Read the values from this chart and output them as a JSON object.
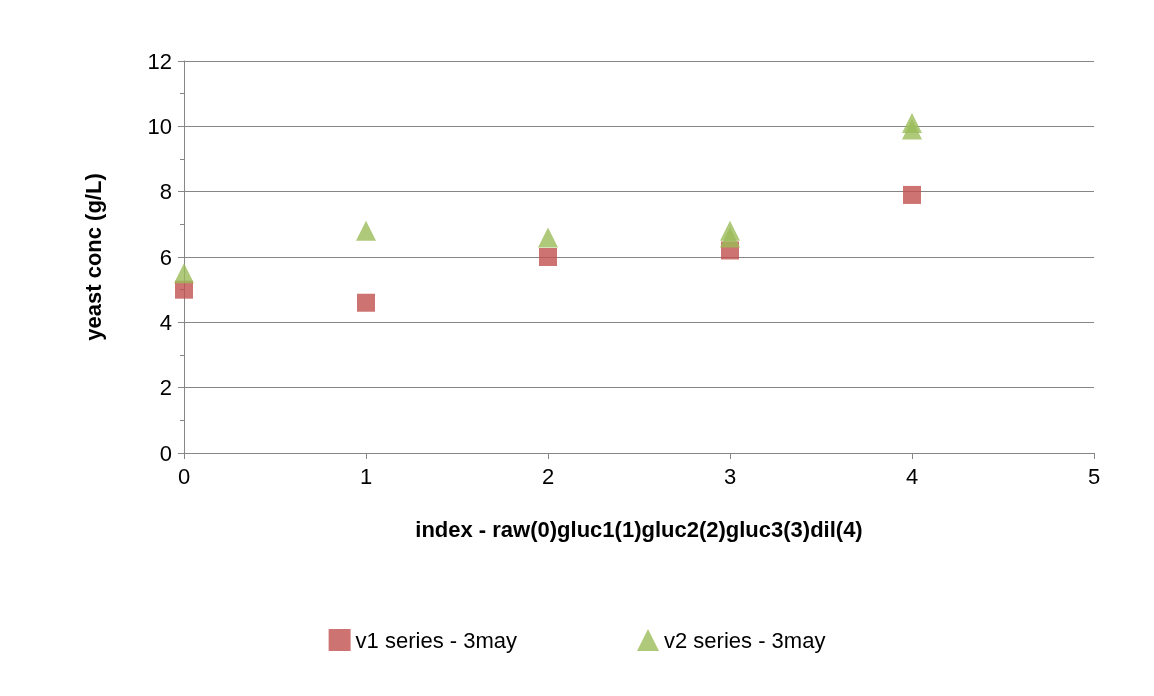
{
  "chart_data": {
    "type": "scatter",
    "xlabel": "index - raw(0)gluc1(1)gluc2(2)gluc3(3)dil(4)",
    "ylabel": "yeast conc (g/L)",
    "xlim": [
      0,
      5
    ],
    "xticks": [
      0,
      1,
      2,
      3,
      4,
      5
    ],
    "ylim": [
      0,
      12
    ],
    "yticks": [
      0,
      2,
      4,
      6,
      8,
      10,
      12
    ],
    "grid": "y",
    "legend": "bottom",
    "series": [
      {
        "name": "v1 series - 3may",
        "color": "#c0504d",
        "marker": "square",
        "x": [
          0,
          1,
          2,
          3,
          4
        ],
        "values": [
          5.0,
          4.6,
          6.0,
          6.2,
          7.9
        ]
      },
      {
        "name": "v2 series - 3may",
        "color": "#9bbb59",
        "marker": "triangle",
        "x": [
          0,
          1,
          2,
          3,
          3,
          4,
          4
        ],
        "values": [
          5.5,
          6.8,
          6.6,
          6.6,
          6.8,
          9.9,
          10.1
        ]
      }
    ]
  }
}
